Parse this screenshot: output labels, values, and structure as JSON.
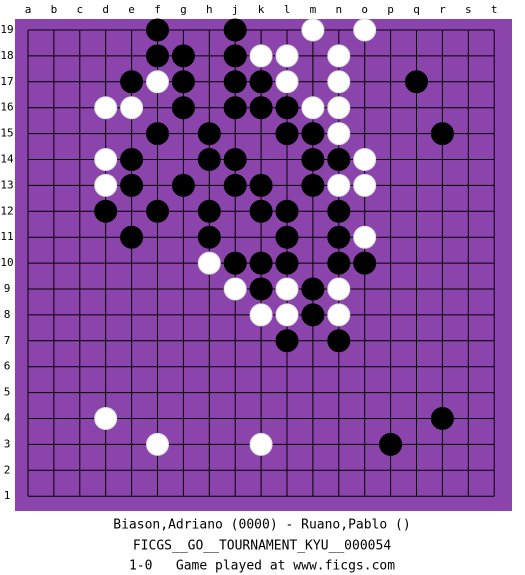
{
  "board": {
    "columns": [
      "a",
      "b",
      "c",
      "d",
      "e",
      "f",
      "g",
      "h",
      "j",
      "k",
      "l",
      "m",
      "n",
      "o",
      "p",
      "q",
      "r",
      "s",
      "t"
    ],
    "rows": [
      "19",
      "18",
      "17",
      "16",
      "15",
      "14",
      "13",
      "12",
      "11",
      "10",
      "9",
      "8",
      "7",
      "6",
      "5",
      "4",
      "3",
      "2",
      "1"
    ],
    "stones": [
      {
        "col": "f",
        "row": "19",
        "color": "black"
      },
      {
        "col": "j",
        "row": "19",
        "color": "black"
      },
      {
        "col": "m",
        "row": "19",
        "color": "white"
      },
      {
        "col": "o",
        "row": "19",
        "color": "white"
      },
      {
        "col": "f",
        "row": "18",
        "color": "black"
      },
      {
        "col": "g",
        "row": "18",
        "color": "black"
      },
      {
        "col": "j",
        "row": "18",
        "color": "black"
      },
      {
        "col": "k",
        "row": "18",
        "color": "white"
      },
      {
        "col": "l",
        "row": "18",
        "color": "white"
      },
      {
        "col": "n",
        "row": "18",
        "color": "white"
      },
      {
        "col": "e",
        "row": "17",
        "color": "black"
      },
      {
        "col": "f",
        "row": "17",
        "color": "white"
      },
      {
        "col": "g",
        "row": "17",
        "color": "black"
      },
      {
        "col": "j",
        "row": "17",
        "color": "black"
      },
      {
        "col": "k",
        "row": "17",
        "color": "black"
      },
      {
        "col": "l",
        "row": "17",
        "color": "white"
      },
      {
        "col": "n",
        "row": "17",
        "color": "white"
      },
      {
        "col": "q",
        "row": "17",
        "color": "black"
      },
      {
        "col": "d",
        "row": "16",
        "color": "white"
      },
      {
        "col": "e",
        "row": "16",
        "color": "white"
      },
      {
        "col": "g",
        "row": "16",
        "color": "black"
      },
      {
        "col": "j",
        "row": "16",
        "color": "black"
      },
      {
        "col": "k",
        "row": "16",
        "color": "black"
      },
      {
        "col": "l",
        "row": "16",
        "color": "black"
      },
      {
        "col": "m",
        "row": "16",
        "color": "white"
      },
      {
        "col": "n",
        "row": "16",
        "color": "white"
      },
      {
        "col": "f",
        "row": "15",
        "color": "black"
      },
      {
        "col": "h",
        "row": "15",
        "color": "black"
      },
      {
        "col": "l",
        "row": "15",
        "color": "black"
      },
      {
        "col": "m",
        "row": "15",
        "color": "black"
      },
      {
        "col": "n",
        "row": "15",
        "color": "white"
      },
      {
        "col": "r",
        "row": "15",
        "color": "black"
      },
      {
        "col": "d",
        "row": "14",
        "color": "white"
      },
      {
        "col": "e",
        "row": "14",
        "color": "black"
      },
      {
        "col": "h",
        "row": "14",
        "color": "black"
      },
      {
        "col": "j",
        "row": "14",
        "color": "black"
      },
      {
        "col": "m",
        "row": "14",
        "color": "black"
      },
      {
        "col": "n",
        "row": "14",
        "color": "black"
      },
      {
        "col": "o",
        "row": "14",
        "color": "white"
      },
      {
        "col": "d",
        "row": "13",
        "color": "white"
      },
      {
        "col": "e",
        "row": "13",
        "color": "black"
      },
      {
        "col": "g",
        "row": "13",
        "color": "black"
      },
      {
        "col": "j",
        "row": "13",
        "color": "black"
      },
      {
        "col": "k",
        "row": "13",
        "color": "black"
      },
      {
        "col": "m",
        "row": "13",
        "color": "black"
      },
      {
        "col": "n",
        "row": "13",
        "color": "white"
      },
      {
        "col": "o",
        "row": "13",
        "color": "white"
      },
      {
        "col": "d",
        "row": "12",
        "color": "black"
      },
      {
        "col": "f",
        "row": "12",
        "color": "black"
      },
      {
        "col": "h",
        "row": "12",
        "color": "black"
      },
      {
        "col": "k",
        "row": "12",
        "color": "black"
      },
      {
        "col": "l",
        "row": "12",
        "color": "black"
      },
      {
        "col": "n",
        "row": "12",
        "color": "black"
      },
      {
        "col": "e",
        "row": "11",
        "color": "black"
      },
      {
        "col": "h",
        "row": "11",
        "color": "black"
      },
      {
        "col": "l",
        "row": "11",
        "color": "black"
      },
      {
        "col": "n",
        "row": "11",
        "color": "black"
      },
      {
        "col": "o",
        "row": "11",
        "color": "white"
      },
      {
        "col": "h",
        "row": "10",
        "color": "white"
      },
      {
        "col": "j",
        "row": "10",
        "color": "black"
      },
      {
        "col": "k",
        "row": "10",
        "color": "black"
      },
      {
        "col": "l",
        "row": "10",
        "color": "black"
      },
      {
        "col": "n",
        "row": "10",
        "color": "black"
      },
      {
        "col": "o",
        "row": "10",
        "color": "black"
      },
      {
        "col": "j",
        "row": "9",
        "color": "white"
      },
      {
        "col": "k",
        "row": "9",
        "color": "black"
      },
      {
        "col": "l",
        "row": "9",
        "color": "white"
      },
      {
        "col": "m",
        "row": "9",
        "color": "black"
      },
      {
        "col": "n",
        "row": "9",
        "color": "white"
      },
      {
        "col": "k",
        "row": "8",
        "color": "white"
      },
      {
        "col": "l",
        "row": "8",
        "color": "white"
      },
      {
        "col": "m",
        "row": "8",
        "color": "black"
      },
      {
        "col": "n",
        "row": "8",
        "color": "white"
      },
      {
        "col": "l",
        "row": "7",
        "color": "black"
      },
      {
        "col": "n",
        "row": "7",
        "color": "black"
      },
      {
        "col": "d",
        "row": "4",
        "color": "white"
      },
      {
        "col": "r",
        "row": "4",
        "color": "black"
      },
      {
        "col": "f",
        "row": "3",
        "color": "white"
      },
      {
        "col": "k",
        "row": "3",
        "color": "white"
      },
      {
        "col": "p",
        "row": "3",
        "color": "black"
      }
    ]
  },
  "footer": {
    "players": "Biason,Adriano (0000) - Ruano,Pablo ()",
    "event": "FICGS__GO__TOURNAMENT_KYU__000054",
    "result": "1-0   Game played at www.ficgs.com"
  }
}
